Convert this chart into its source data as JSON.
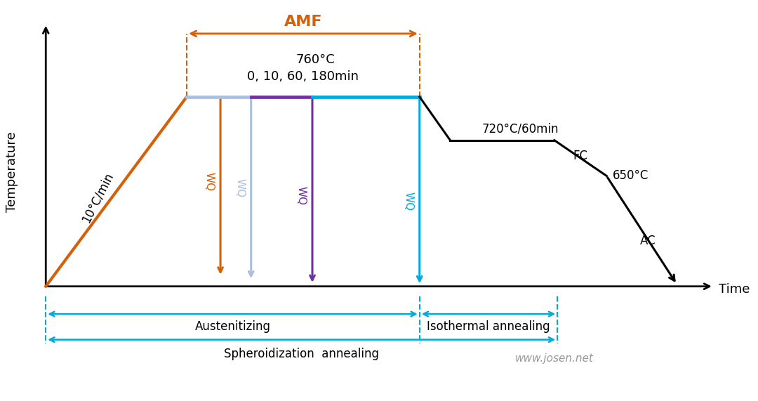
{
  "bg_color": "#ffffff",
  "figsize": [
    10.8,
    5.71
  ],
  "dpi": 100,
  "black": "#000000",
  "orange": "#D4600A",
  "light_blue": "#AABFDF",
  "purple": "#7030A0",
  "cyan": "#00AADD",
  "dash_orange": "#D4600A",
  "dash_cyan": "#00AADD",
  "ylabel": "Temperature",
  "xlabel": "Time",
  "label_AMF": "AMF",
  "label_760": "760°C",
  "label_times": "0, 10, 60, 180min",
  "label_10C": "10°C/min",
  "label_720": "720°C/60min",
  "label_650": "650°C",
  "label_FC": "FC",
  "label_AC": "AC",
  "label_WQ": "WQ",
  "label_aust": "Austenitizing",
  "label_iso": "Isothermal annealing",
  "label_spher": "Spheroidization  annealing",
  "watermark": "www.josen.net"
}
